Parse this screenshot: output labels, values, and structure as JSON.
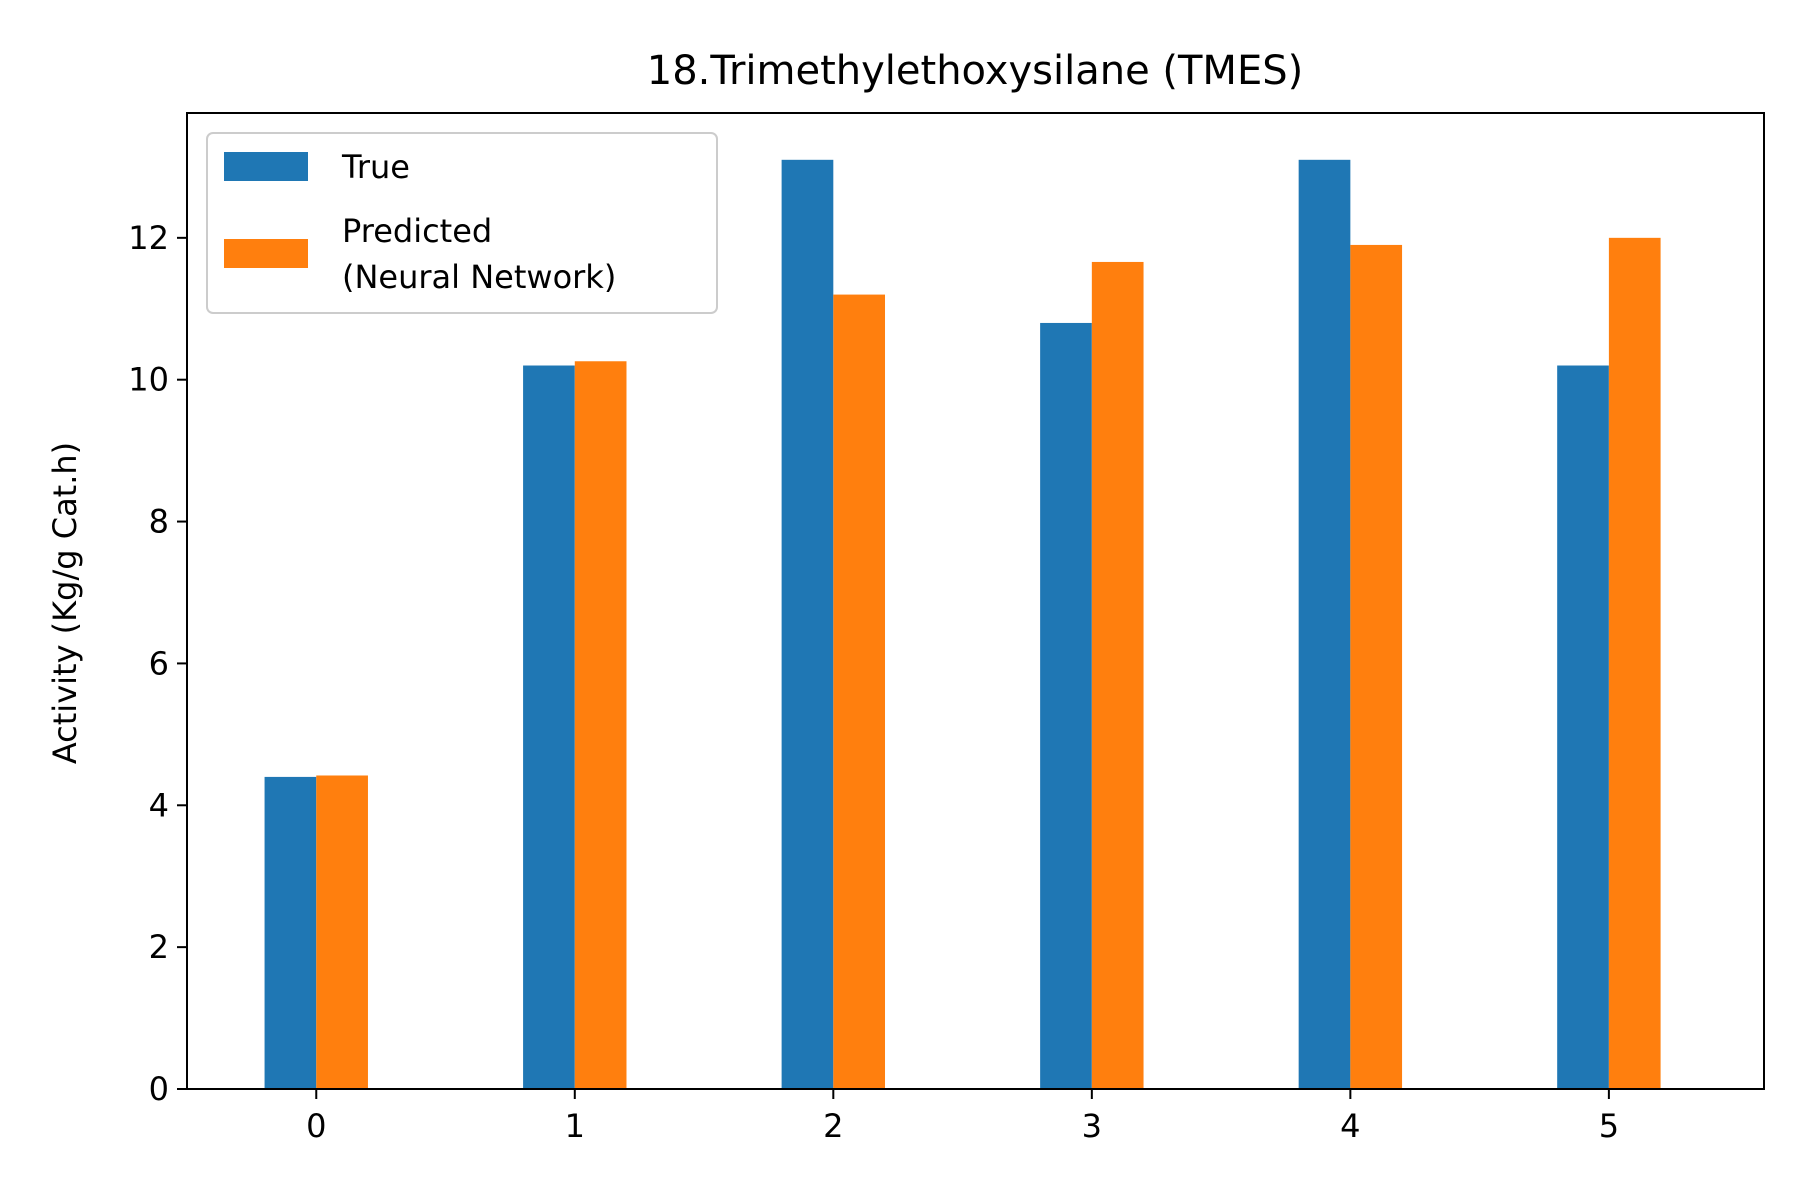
{
  "chart_data": {
    "type": "bar",
    "title": "18.Trimethylethoxysilane (TMES)",
    "xlabel": "",
    "ylabel": "Activity (Kg/g Cat.h)",
    "categories": [
      "0",
      "1",
      "2",
      "3",
      "4",
      "5"
    ],
    "series": [
      {
        "name": "True",
        "color": "#1f77b4",
        "values": [
          4.4,
          10.2,
          13.1,
          10.8,
          13.1,
          10.2
        ]
      },
      {
        "name": "Predicted\n(Neural Network)",
        "color": "#ff7f0e",
        "values": [
          4.42,
          10.26,
          11.2,
          11.66,
          11.9,
          12.0
        ]
      }
    ],
    "ylim": [
      0,
      13.76
    ],
    "yticks": [
      0,
      2,
      4,
      6,
      8,
      10,
      12
    ],
    "ytick_labels": [
      "0",
      "2",
      "4",
      "6",
      "8",
      "10",
      "12"
    ],
    "grid": false,
    "legend_position": "top-left"
  }
}
